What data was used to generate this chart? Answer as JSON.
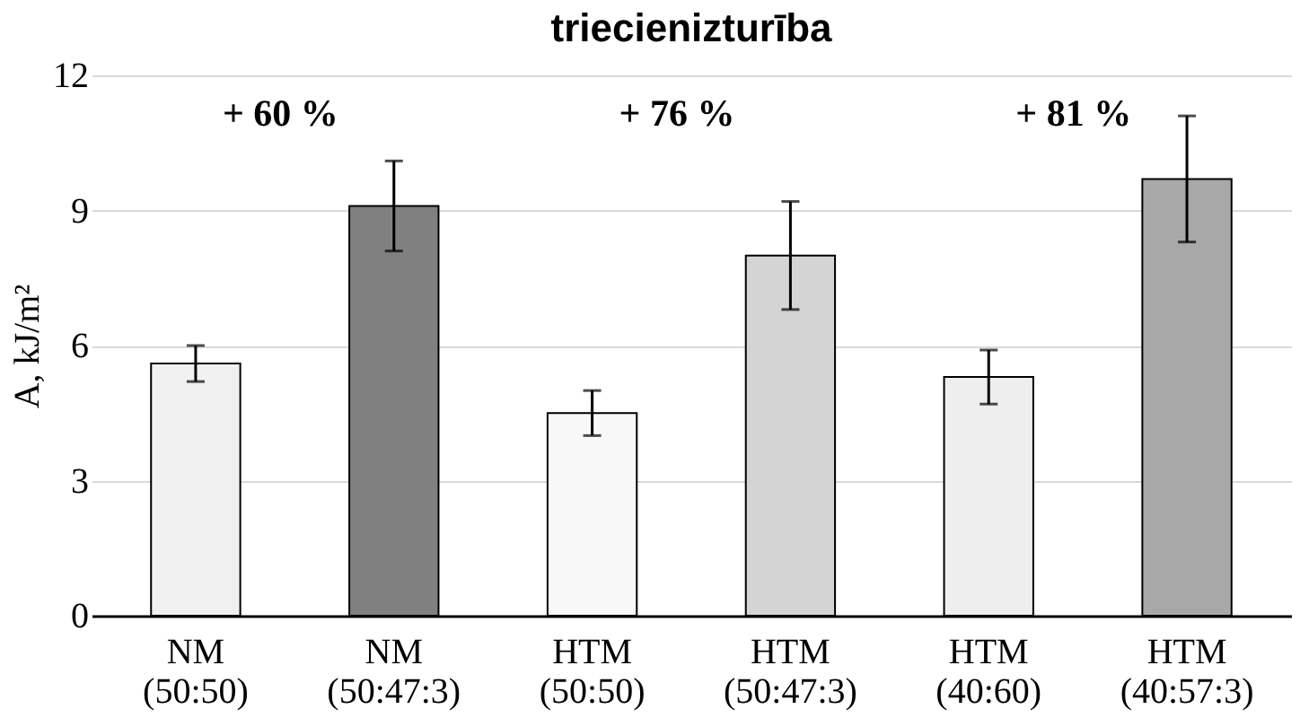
{
  "chart_data": {
    "type": "bar",
    "title": "triecienizturība",
    "ylabel": "A, kJ/m²",
    "categories": [
      "NM (50:50)",
      "NM (50:47:3)",
      "HTM (50:50)",
      "HTM (50:47:3)",
      "HTM (40:60)",
      "HTM (40:57:3)"
    ],
    "values": [
      5.6,
      9.1,
      4.5,
      8.0,
      5.3,
      9.7
    ],
    "errors": [
      0.4,
      1.0,
      0.5,
      1.2,
      0.6,
      1.4
    ],
    "colors": [
      "#f0f0f0",
      "#808080",
      "#f8f8f8",
      "#d4d4d4",
      "#eeeeee",
      "#a8a8a8"
    ],
    "ylim": [
      0,
      12
    ],
    "yticks": [
      0,
      3,
      6,
      9,
      12
    ],
    "grid": "y",
    "annotations": [
      "+ 60 %",
      "+ 76 %",
      "+ 81 %"
    ]
  }
}
